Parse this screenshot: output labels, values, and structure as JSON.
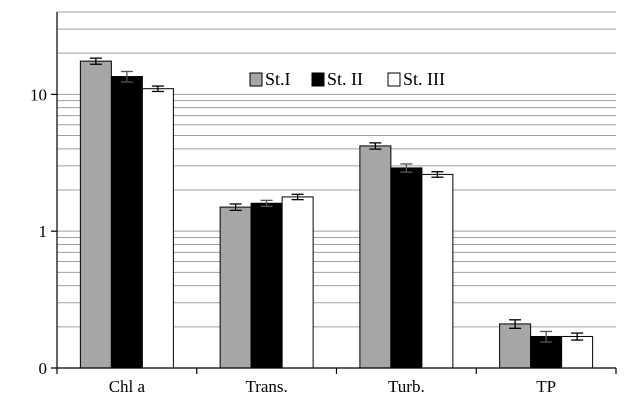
{
  "chart_data": {
    "type": "bar",
    "y_scale": "log",
    "ylim": [
      0.1,
      40
    ],
    "grid": true,
    "legend_position": "top-center",
    "title": "",
    "xlabel": "",
    "ylabel": "",
    "categories": [
      "Chl a",
      "Trans.",
      "Turb.",
      "TP"
    ],
    "y_tick_labels": [
      {
        "value": 0.1,
        "label": "0"
      },
      {
        "value": 1,
        "label": "1"
      },
      {
        "value": 10,
        "label": "10"
      }
    ],
    "series": [
      {
        "name": "St.I",
        "color": "#a6a6a6",
        "values": [
          17.5,
          1.5,
          4.2,
          0.21
        ],
        "errors": [
          0.9,
          0.08,
          0.22,
          0.015
        ]
      },
      {
        "name": "St. II",
        "color": "#000000",
        "values": [
          13.5,
          1.6,
          2.9,
          0.17
        ],
        "errors": [
          1.2,
          0.08,
          0.2,
          0.015
        ]
      },
      {
        "name": "St. III",
        "color": "#ffffff",
        "values": [
          11.0,
          1.78,
          2.6,
          0.17
        ],
        "errors": [
          0.5,
          0.08,
          0.12,
          0.01
        ]
      }
    ]
  }
}
